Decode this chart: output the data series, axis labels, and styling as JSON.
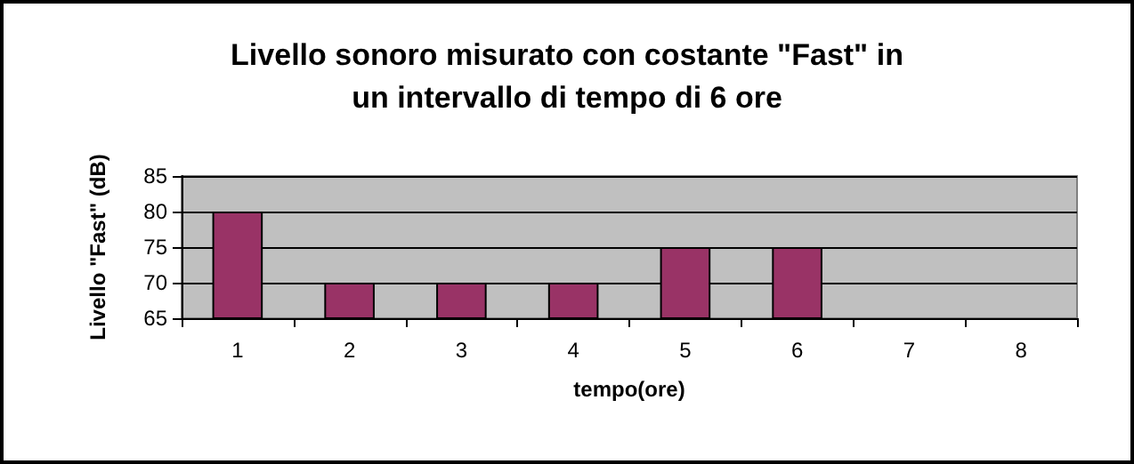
{
  "chart_data": {
    "type": "bar",
    "title": "Livello sonoro misurato con costante \"Fast\" in\nun intervallo di tempo di 6 ore",
    "xlabel": "tempo(ore)",
    "ylabel": "Livello \"Fast\" (dB)",
    "categories": [
      "1",
      "2",
      "3",
      "4",
      "5",
      "6",
      "7",
      "8"
    ],
    "values": [
      80,
      70,
      70,
      70,
      75,
      75,
      null,
      null
    ],
    "color": "#993366",
    "ylim": [
      65,
      85
    ],
    "yticks": [
      65,
      70,
      75,
      80,
      85
    ],
    "grid": "y"
  }
}
